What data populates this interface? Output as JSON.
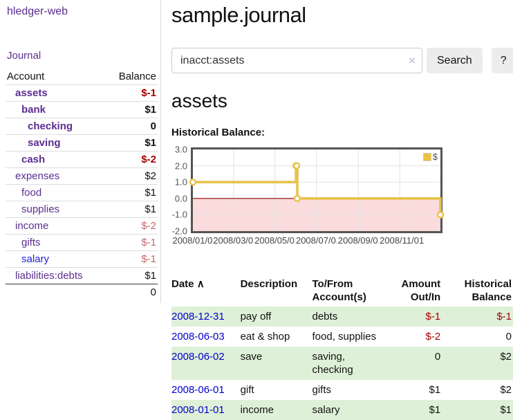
{
  "sidebar": {
    "app_title": "hledger-web",
    "journal_link": "Journal",
    "accounts_table": {
      "headers": {
        "account": "Account",
        "balance": "Balance"
      },
      "rows": [
        {
          "name": "assets",
          "depth": 1,
          "bold": true,
          "balance": "$-1"
        },
        {
          "name": "bank",
          "depth": 2,
          "bold": true,
          "balance": "$1"
        },
        {
          "name": "checking",
          "depth": 3,
          "bold": true,
          "balance": "0"
        },
        {
          "name": "saving",
          "depth": 3,
          "bold": true,
          "balance": "$1"
        },
        {
          "name": "cash",
          "depth": 2,
          "bold": true,
          "balance": "$-2"
        },
        {
          "name": "expenses",
          "depth": 1,
          "bold": false,
          "balance": "$2"
        },
        {
          "name": "food",
          "depth": 2,
          "bold": false,
          "balance": "$1"
        },
        {
          "name": "supplies",
          "depth": 2,
          "bold": false,
          "balance": "$1"
        },
        {
          "name": "income",
          "depth": 1,
          "bold": false,
          "balance": "$-2"
        },
        {
          "name": "gifts",
          "depth": 2,
          "bold": false,
          "balance": "$-1"
        },
        {
          "name": "salary",
          "depth": 2,
          "bold": false,
          "balance": "$-1",
          "variant": "blue"
        },
        {
          "name": "liabilities:debts",
          "depth": 1,
          "bold": false,
          "balance": "$1"
        }
      ],
      "total": "0"
    }
  },
  "main": {
    "title": "sample.journal",
    "search": {
      "value": "inacct:assets",
      "clear_icon": "×",
      "search_button": "Search",
      "help_button": "?"
    },
    "account_heading": "assets",
    "chart_heading": "Historical Balance:"
  },
  "chart_data": {
    "type": "line",
    "step": true,
    "title": "Historical Balance:",
    "series": [
      {
        "name": "$",
        "color": "#edc240",
        "points": [
          [
            "2008-01-01",
            1.0
          ],
          [
            "2008-06-01",
            2.0
          ],
          [
            "2008-06-02",
            2.0
          ],
          [
            "2008-06-03",
            0.0
          ],
          [
            "2008-12-31",
            -1.0
          ]
        ]
      }
    ],
    "xlim": [
      "2008-01-01",
      "2008-12-31"
    ],
    "ylim": [
      -2.0,
      3.0
    ],
    "y_ticks": [
      "3.0",
      "2.0",
      "1.0",
      "0.0",
      "-1.0",
      "-2.0"
    ],
    "x_ticks": [
      {
        "date": "2008-01-01",
        "label": "2008/01/01"
      },
      {
        "date": "2008-03-01",
        "label": "2008/03/01"
      },
      {
        "date": "2008-05-01",
        "label": "2008/05/01"
      },
      {
        "date": "2008-07-01",
        "label": "2008/07/01"
      },
      {
        "date": "2008-09-01",
        "label": "2008/09/01"
      },
      {
        "date": "2008-11-01",
        "label": "2008/11/01"
      }
    ],
    "legend": {
      "label": "$",
      "position": "top-right"
    },
    "grid": true,
    "colors": {
      "line": "#e8c24a",
      "marker_fill": "#ffffff",
      "gridline": "#e2e2e2",
      "zero_line": "#8b0000",
      "negative_region_fill": "#fbdcdc",
      "border": "#545454"
    }
  },
  "register": {
    "headers": {
      "date": "Date",
      "sort_icon": "∧",
      "description": "Description",
      "accounts": "To/From Account(s)",
      "amount": "Amount Out/In",
      "balance": "Historical Balance"
    },
    "rows": [
      {
        "date": "2008-12-31",
        "description": "pay off",
        "accounts": "debts",
        "amount": "$-1",
        "balance": "$-1"
      },
      {
        "date": "2008-06-03",
        "description": "eat & shop",
        "accounts": "food, supplies",
        "amount": "$-2",
        "balance": "0"
      },
      {
        "date": "2008-06-02",
        "description": "save",
        "accounts": "saving, checking",
        "amount": "0",
        "balance": "$2"
      },
      {
        "date": "2008-06-01",
        "description": "gift",
        "accounts": "gifts",
        "amount": "$1",
        "balance": "$2"
      },
      {
        "date": "2008-01-01",
        "description": "income",
        "accounts": "salary",
        "amount": "$1",
        "balance": "$1"
      }
    ]
  },
  "colors": {
    "accent_purple": "#5c2d91",
    "link_blue": "#0000cc",
    "negative_strong": "#a40000",
    "negative_muted": "#c06868",
    "row_stripe_green": "#dff0d8"
  }
}
